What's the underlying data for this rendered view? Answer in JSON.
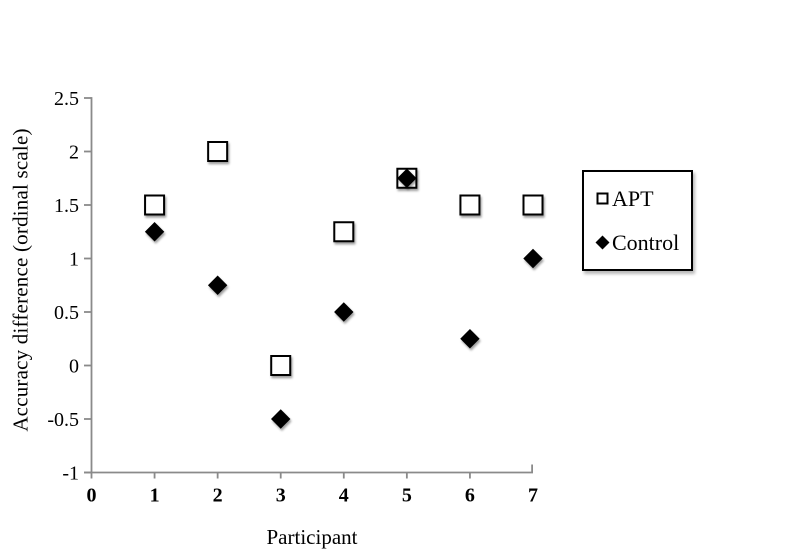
{
  "chart_data": {
    "type": "scatter",
    "title": "",
    "xlabel": "Participant",
    "ylabel": "Accuracy difference (ordinal scale)",
    "xlim": [
      0,
      7
    ],
    "ylim": [
      -1,
      2.5
    ],
    "x_ticks": [
      0,
      1,
      2,
      3,
      4,
      5,
      6,
      7
    ],
    "y_ticks": [
      2.5,
      2,
      1.5,
      1,
      0.5,
      0,
      -0.5,
      -1
    ],
    "grid": false,
    "legend_position": "right-outside",
    "x": [
      1,
      2,
      3,
      4,
      5,
      6,
      7
    ],
    "series": [
      {
        "name": "APT",
        "marker": "open-square",
        "fill": "#ffffff",
        "stroke": "#000000",
        "values": [
          1.5,
          2,
          0,
          1.25,
          1.75,
          1.5,
          1.5
        ]
      },
      {
        "name": "Control",
        "marker": "filled-diamond",
        "fill": "#000000",
        "stroke": "#000000",
        "values": [
          1.25,
          0.75,
          -0.5,
          0.5,
          1.75,
          0.25,
          1
        ]
      }
    ],
    "colors": {
      "axis": "#8a8a8a",
      "text": "#000000",
      "background": "#ffffff"
    }
  }
}
